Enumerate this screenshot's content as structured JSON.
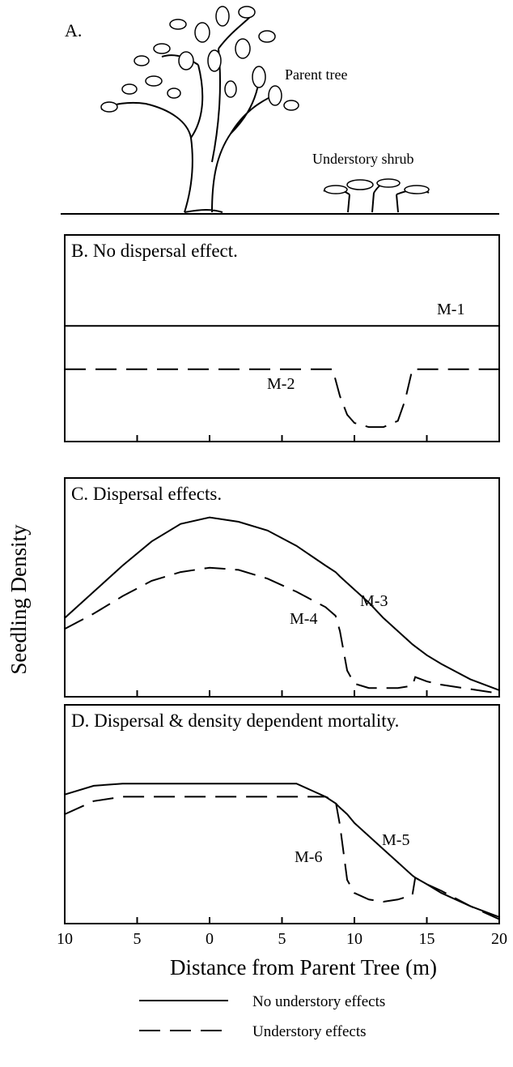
{
  "figure": {
    "panel_a": {
      "label": "A.",
      "tree": "Parent tree",
      "shrub": "Understory shrub"
    },
    "y_label": "Seedling Density",
    "x_label": "Distance from Parent Tree  (m)",
    "legend": [
      {
        "label": "No understory effects",
        "style": "solid"
      },
      {
        "label": "Understory effects",
        "style": "dashed"
      }
    ]
  },
  "chart_data": [
    {
      "type": "line",
      "title": "B. No dispersal effect.",
      "x": [
        -10,
        8.5,
        9,
        9.5,
        10,
        11,
        12,
        13,
        13.5,
        14,
        20
      ],
      "series": [
        {
          "name": "M-1",
          "color": "#000000",
          "style": "solid",
          "values": [
            0.56,
            0.56,
            0.56,
            0.56,
            0.56,
            0.56,
            0.56,
            0.56,
            0.56,
            0.56,
            0.56
          ]
        },
        {
          "name": "M-2",
          "color": "#000000",
          "style": "dashed",
          "values": [
            0.35,
            0.35,
            0.22,
            0.13,
            0.09,
            0.07,
            0.07,
            0.1,
            0.2,
            0.35,
            0.35
          ]
        }
      ],
      "xlim": [
        -10,
        20
      ],
      "ylim": [
        0,
        1
      ],
      "xticks": [
        {
          "value": -10,
          "label": "10"
        },
        {
          "value": -5,
          "label": "5"
        },
        0,
        5,
        10,
        15,
        20
      ]
    },
    {
      "type": "line",
      "title": "C. Dispersal effects.",
      "x": [
        -10,
        -8,
        -6,
        -4,
        -2,
        0,
        2,
        4,
        6,
        8,
        8.7,
        9,
        9.5,
        10,
        11,
        12,
        13,
        14,
        14.2,
        15,
        16,
        18,
        20
      ],
      "series": [
        {
          "name": "M-3",
          "color": "#000000",
          "style": "solid",
          "values": [
            0.36,
            0.48,
            0.6,
            0.71,
            0.79,
            0.82,
            0.8,
            0.76,
            0.69,
            0.6,
            0.57,
            0.55,
            0.52,
            0.49,
            0.43,
            0.36,
            0.3,
            0.24,
            0.23,
            0.19,
            0.15,
            0.08,
            0.03
          ]
        },
        {
          "name": "M-4",
          "color": "#000000",
          "style": "dashed",
          "values": [
            0.31,
            0.38,
            0.46,
            0.53,
            0.57,
            0.59,
            0.58,
            0.54,
            0.48,
            0.41,
            0.37,
            0.3,
            0.12,
            0.06,
            0.04,
            0.04,
            0.04,
            0.05,
            0.09,
            0.07,
            0.055,
            0.035,
            0.015
          ]
        }
      ],
      "xlim": [
        -10,
        20
      ],
      "ylim": [
        0,
        1
      ],
      "xticks": [
        {
          "value": -10,
          "label": "10"
        },
        {
          "value": -5,
          "label": "5"
        },
        0,
        5,
        10,
        15,
        20
      ]
    },
    {
      "type": "line",
      "title": "D. Dispersal & density dependent mortality.",
      "x": [
        -10,
        -8,
        -6,
        -4,
        -2,
        0,
        2,
        4,
        6,
        8,
        8.7,
        9,
        9.5,
        10,
        11,
        12,
        13,
        14,
        14.2,
        15,
        16,
        18,
        20
      ],
      "series": [
        {
          "name": "M-5",
          "color": "#000000",
          "style": "solid",
          "values": [
            0.59,
            0.63,
            0.64,
            0.64,
            0.64,
            0.64,
            0.64,
            0.64,
            0.64,
            0.58,
            0.55,
            0.53,
            0.5,
            0.46,
            0.4,
            0.34,
            0.28,
            0.22,
            0.21,
            0.18,
            0.14,
            0.08,
            0.03
          ]
        },
        {
          "name": "M-6",
          "color": "#000000",
          "style": "dashed",
          "values": [
            0.5,
            0.56,
            0.58,
            0.58,
            0.58,
            0.58,
            0.58,
            0.58,
            0.58,
            0.58,
            0.56,
            0.45,
            0.2,
            0.14,
            0.11,
            0.1,
            0.11,
            0.13,
            0.21,
            0.18,
            0.15,
            0.08,
            0.02
          ]
        }
      ],
      "xlim": [
        -10,
        20
      ],
      "ylim": [
        0,
        1
      ],
      "xticks": [
        {
          "value": -10,
          "label": "10"
        },
        {
          "value": -5,
          "label": "5"
        },
        0,
        5,
        10,
        15,
        20
      ]
    }
  ]
}
